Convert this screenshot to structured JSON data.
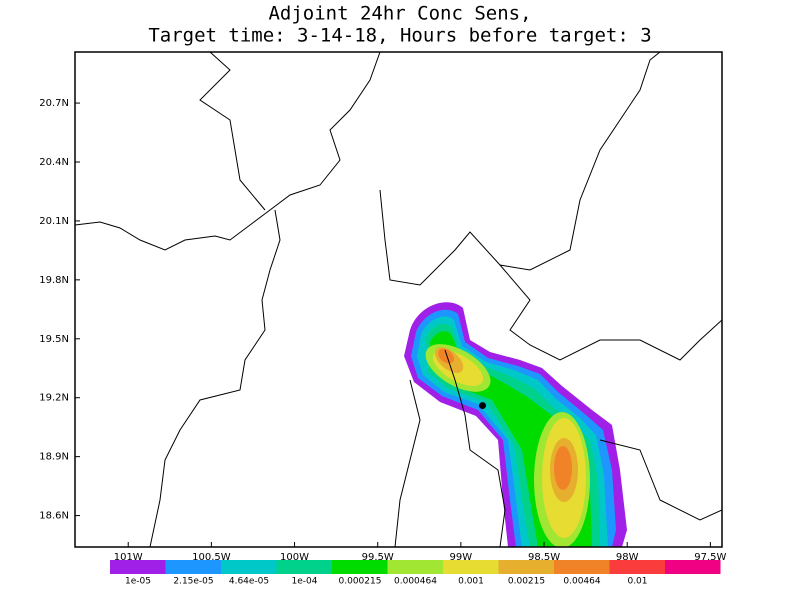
{
  "chart_data": {
    "type": "contour-map",
    "title": [
      "Adjoint 24hr Conc Sens,",
      "Target time: 3-14-18, Hours before target: 3"
    ],
    "xlim": [
      -101.32,
      -97.43
    ],
    "ylim": [
      18.44,
      20.96
    ],
    "xticks": [
      {
        "value": -101,
        "label": "101W"
      },
      {
        "value": -100.5,
        "label": "100.5W"
      },
      {
        "value": -100,
        "label": "100W"
      },
      {
        "value": -99.5,
        "label": "99.5W"
      },
      {
        "value": -99,
        "label": "99W"
      },
      {
        "value": -98.5,
        "label": "98.5W"
      },
      {
        "value": -98,
        "label": "98W"
      },
      {
        "value": -97.5,
        "label": "97.5W"
      }
    ],
    "yticks": [
      {
        "value": 18.6,
        "label": "18.6N"
      },
      {
        "value": 18.9,
        "label": "18.9N"
      },
      {
        "value": 19.2,
        "label": "19.2N"
      },
      {
        "value": 19.5,
        "label": "19.5N"
      },
      {
        "value": 19.8,
        "label": "19.8N"
      },
      {
        "value": 20.1,
        "label": "20.1N"
      },
      {
        "value": 20.4,
        "label": "20.4N"
      },
      {
        "value": 20.7,
        "label": "20.7N"
      }
    ],
    "colorbar": {
      "levels": [
        "1e-05",
        "2.15e-05",
        "4.64e-05",
        "1e-04",
        "0.000215",
        "0.000464",
        "0.001",
        "0.00215",
        "0.00464",
        "0.01"
      ],
      "colors": [
        "#a020e8",
        "#1e96ff",
        "#00c8c8",
        "#00d28c",
        "#00dc00",
        "#a0e632",
        "#e6dc32",
        "#e6af2d",
        "#f08228",
        "#fa3c3c",
        "#f00082"
      ]
    },
    "target_point": {
      "lon": -98.87,
      "lat": 19.16
    }
  }
}
